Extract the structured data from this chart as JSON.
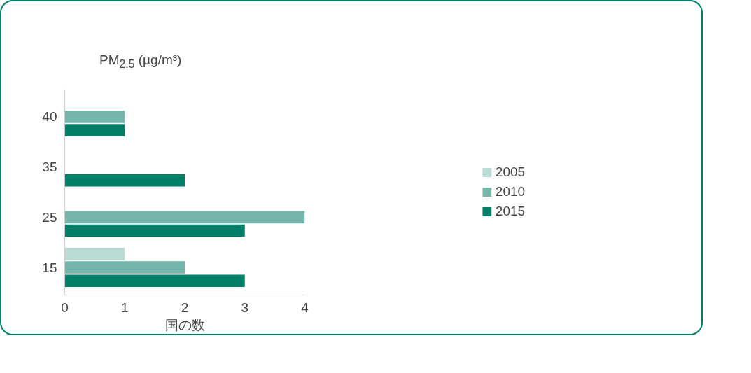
{
  "chart_data": {
    "type": "bar",
    "orientation": "horizontal",
    "ylabel": "PM$_{2.5}$ (µg/m³)",
    "xlabel": "国の数",
    "categories": [
      "40",
      "35",
      "25",
      "15"
    ],
    "series": [
      {
        "name": "2005",
        "color": "#b9dbd3",
        "values": [
          null,
          null,
          null,
          1
        ]
      },
      {
        "name": "2010",
        "color": "#74b6ab",
        "values": [
          1,
          null,
          4,
          2
        ]
      },
      {
        "name": "2015",
        "color": "#007f68",
        "values": [
          1,
          2,
          3,
          3
        ]
      }
    ],
    "xlim": [
      0,
      4
    ],
    "xticks": [
      0,
      1,
      2,
      3,
      4
    ],
    "grid": false,
    "legend": "right"
  }
}
